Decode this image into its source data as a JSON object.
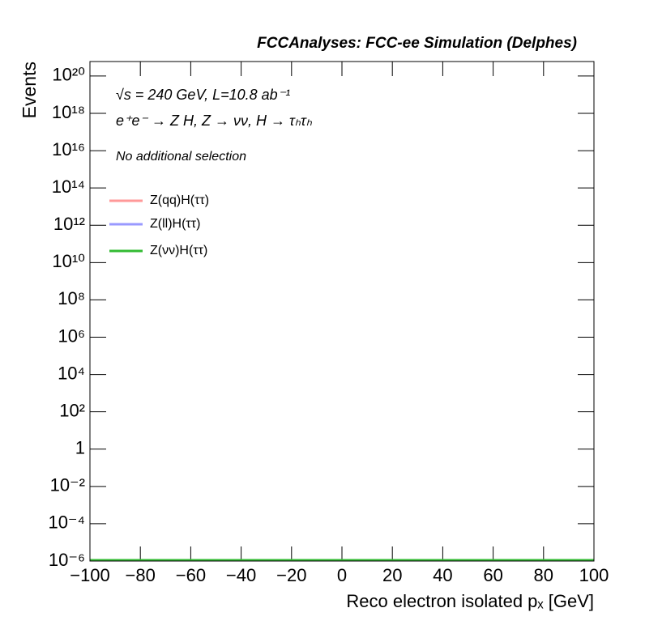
{
  "chart_data": {
    "type": "histogram",
    "title": "FCCAnalyses: FCC-ee Simulation (Delphes)",
    "annotations": [
      "√s = 240 GeV, L=10.8 ab⁻¹",
      "e⁺e⁻ → Z H, Z → νν, H → τₕτₕ",
      "No additional selection"
    ],
    "x_label": "Reco electron isolated pₓ [GeV]",
    "y_label": "Events",
    "bins": [
      -100,
      100
    ],
    "series": [
      {
        "name": "Z(qq)H(ττ)",
        "color": "#ff9999",
        "values": [
          0
        ]
      },
      {
        "name": "Z(ll)H(ττ)",
        "color": "#9999ff",
        "values": [
          0
        ]
      },
      {
        "name": "Z(νν)H(ττ)",
        "color": "#33bb33",
        "values": [
          0
        ]
      }
    ],
    "xlim": [
      -100,
      100
    ],
    "xticks": [
      {
        "value": -100,
        "label": "−100"
      },
      {
        "value": -80,
        "label": "−80"
      },
      {
        "value": -60,
        "label": "−60"
      },
      {
        "value": -40,
        "label": "−40"
      },
      {
        "value": -20,
        "label": "−20"
      },
      0,
      20,
      40,
      60,
      80,
      100
    ],
    "ylim": [
      1e-06,
      6e+20
    ],
    "log_y": true,
    "yticks": [
      {
        "value": 1e-06,
        "label": "10⁻⁶"
      },
      {
        "value": 0.0001,
        "label": "10⁻⁴"
      },
      {
        "value": 0.01,
        "label": "10⁻²"
      },
      1,
      {
        "value": 100,
        "label": "10²"
      },
      {
        "value": 10000.0,
        "label": "10⁴"
      },
      {
        "value": 1000000.0,
        "label": "10⁶"
      },
      {
        "value": 100000000.0,
        "label": "10⁸"
      },
      {
        "value": 10000000000.0,
        "label": "10¹⁰"
      },
      {
        "value": 1000000000000.0,
        "label": "10¹²"
      },
      {
        "value": 100000000000000.0,
        "label": "10¹⁴"
      },
      {
        "value": 1e+16,
        "label": "10¹⁶"
      },
      {
        "value": 1e+18,
        "label": "10¹⁸"
      },
      {
        "value": 1e+20,
        "label": "10²⁰"
      }
    ],
    "legend": "upper left",
    "grid": false
  }
}
